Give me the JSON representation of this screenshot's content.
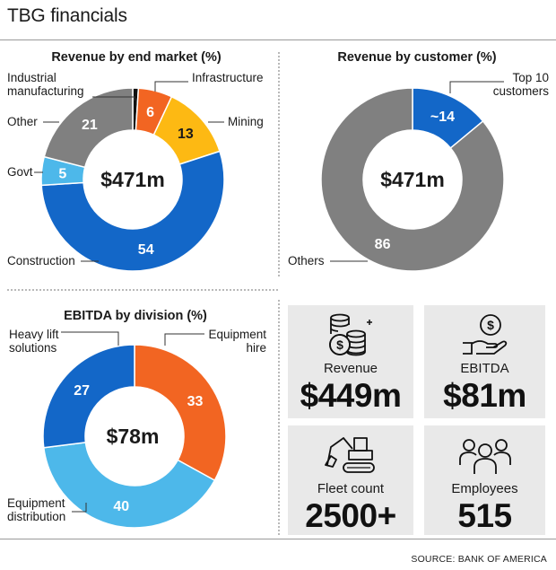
{
  "page": {
    "title": "TBG financials",
    "source": "SOURCE: BANK OF AMERICA"
  },
  "colors": {
    "orange": "#f26522",
    "yellow": "#fdb913",
    "blue": "#1367c8",
    "light_blue": "#4db8ea",
    "grey": "#808080",
    "black": "#111111",
    "tile_bg": "#e9e9e9"
  },
  "chart_data": [
    {
      "type": "pie",
      "donut": true,
      "title": "Revenue by end market (%)",
      "center_label": "$471m",
      "slices": [
        {
          "label": "Industrial manufacturing",
          "value": 1,
          "value_label": "",
          "color": "#111111"
        },
        {
          "label": "Infrastructure",
          "value": 6,
          "value_label": "6",
          "color": "#f26522"
        },
        {
          "label": "Mining",
          "value": 13,
          "value_label": "13",
          "color": "#fdb913"
        },
        {
          "label": "Construction",
          "value": 54,
          "value_label": "54",
          "color": "#1367c8"
        },
        {
          "label": "Govt",
          "value": 5,
          "value_label": "5",
          "color": "#4db8ea"
        },
        {
          "label": "Other",
          "value": 21,
          "value_label": "21",
          "color": "#808080"
        }
      ]
    },
    {
      "type": "pie",
      "donut": true,
      "title": "Revenue by customer (%)",
      "center_label": "$471m",
      "slices": [
        {
          "label": "Top 10 customers",
          "value": 14,
          "value_label": "~14",
          "color": "#1367c8"
        },
        {
          "label": "Others",
          "value": 86,
          "value_label": "86",
          "color": "#808080"
        }
      ]
    },
    {
      "type": "pie",
      "donut": true,
      "title": "EBITDA by division (%)",
      "center_label": "$78m",
      "slices": [
        {
          "label": "Equipment hire",
          "value": 33,
          "value_label": "33",
          "color": "#f26522"
        },
        {
          "label": "Equipment distribution",
          "value": 40,
          "value_label": "40",
          "color": "#4db8ea"
        },
        {
          "label": "Heavy lift solutions",
          "value": 27,
          "value_label": "27",
          "color": "#1367c8"
        }
      ]
    }
  ],
  "callouts": {
    "industrial": [
      "Industrial",
      "manufacturing"
    ],
    "infrastructure": [
      "Infrastructure"
    ],
    "mining": [
      "Mining"
    ],
    "other": [
      "Other"
    ],
    "govt": [
      "Govt"
    ],
    "construction": [
      "Construction"
    ],
    "top10": [
      "Top 10",
      "customers"
    ],
    "others": [
      "Others"
    ],
    "heavy_lift": [
      "Heavy lift",
      "solutions"
    ],
    "equip_hire": [
      "Equipment",
      "hire"
    ],
    "equip_dist": [
      "Equipment",
      "distribution"
    ]
  },
  "stats": [
    {
      "label": "Revenue",
      "value": "$449m",
      "icon": "coins-icon"
    },
    {
      "label": "EBITDA",
      "value": "$81m",
      "icon": "hand-dollar-icon"
    },
    {
      "label": "Fleet count",
      "value": "2500+",
      "icon": "excavator-icon"
    },
    {
      "label": "Employees",
      "value": "515",
      "icon": "people-icon"
    }
  ]
}
